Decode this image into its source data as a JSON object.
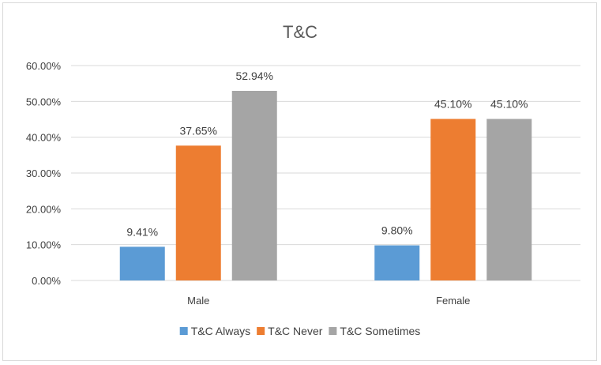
{
  "chart_data": {
    "type": "bar",
    "title": "T&C",
    "xlabel": "",
    "ylabel": "",
    "categories": [
      "Male",
      "Female"
    ],
    "series": [
      {
        "name": "T&C Always",
        "values": [
          9.41,
          9.8
        ],
        "labels": [
          "9.41%",
          "9.80%"
        ],
        "color": "#5b9bd5"
      },
      {
        "name": "T&C Never",
        "values": [
          37.65,
          45.1
        ],
        "labels": [
          "37.65%",
          "45.10%"
        ],
        "color": "#ed7d31"
      },
      {
        "name": "T&C Sometimes",
        "values": [
          52.94,
          45.1
        ],
        "labels": [
          "52.94%",
          "45.10%"
        ],
        "color": "#a5a5a5"
      }
    ],
    "ylim": [
      0,
      60
    ],
    "yticks": [
      0,
      10,
      20,
      30,
      40,
      50,
      60
    ],
    "ytick_labels": [
      "0.00%",
      "10.00%",
      "20.00%",
      "30.00%",
      "40.00%",
      "50.00%",
      "60.00%"
    ],
    "grid": true,
    "legend": "bottom"
  }
}
